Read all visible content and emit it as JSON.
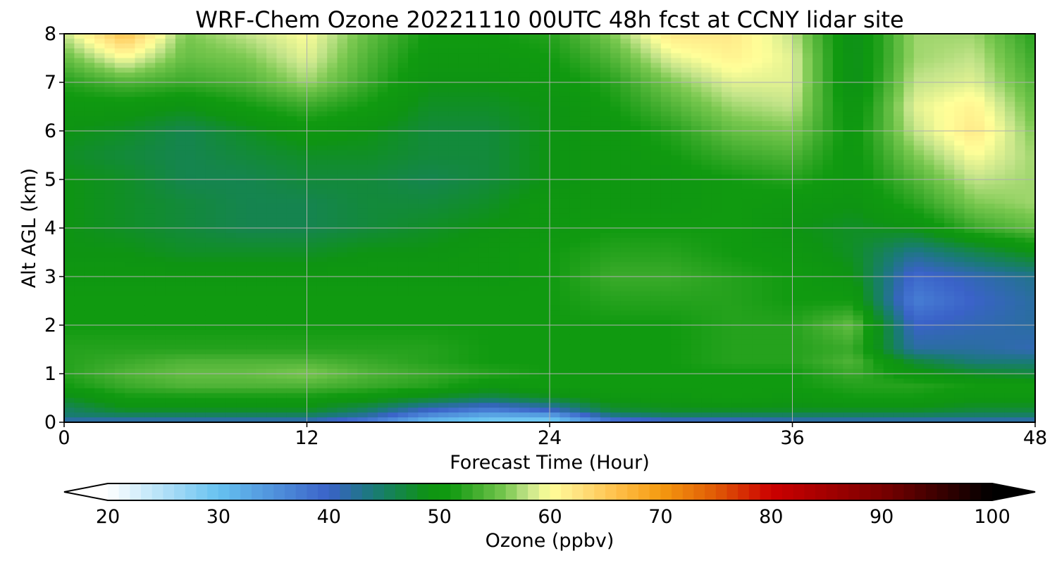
{
  "chart_data": {
    "type": "heatmap",
    "title": "WRF-Chem Ozone  20221110 00UTC 48h fcst at CCNY lidar site",
    "xlabel": "Forecast Time (Hour)",
    "ylabel": "Alt AGL (km)",
    "xlim": [
      0,
      48
    ],
    "ylim": [
      0,
      8
    ],
    "xticks": [
      0,
      12,
      24,
      36,
      48
    ],
    "yticks": [
      0,
      1,
      2,
      3,
      4,
      5,
      6,
      7,
      8
    ],
    "grid": true,
    "x": [
      0,
      3,
      6,
      9,
      12,
      15,
      18,
      21,
      24,
      27,
      30,
      33,
      36,
      39,
      42,
      45,
      48
    ],
    "y": [
      0,
      0.1,
      0.25,
      0.5,
      0.75,
      1,
      1.25,
      1.5,
      2,
      2.5,
      3,
      3.5,
      4,
      4.5,
      5,
      5.5,
      6,
      6.5,
      7,
      7.5,
      8
    ],
    "z": [
      [
        40,
        40,
        40,
        40,
        40,
        36,
        30,
        28,
        28,
        36,
        38,
        38,
        40,
        40,
        40,
        40,
        40
      ],
      [
        44,
        44,
        44,
        44,
        44,
        41,
        34,
        31,
        31,
        42,
        44,
        44,
        44,
        44,
        44,
        44,
        44
      ],
      [
        45,
        48,
        48,
        48,
        48,
        45,
        40,
        37,
        40,
        47,
        48,
        48,
        48,
        48,
        48,
        47,
        47
      ],
      [
        48,
        51,
        51,
        51,
        51,
        50,
        48,
        46,
        48,
        50,
        50,
        51,
        50,
        51,
        51,
        50,
        50
      ],
      [
        51,
        53,
        54,
        54,
        54,
        53,
        52,
        50,
        51,
        51,
        51,
        51,
        51,
        52,
        52,
        51,
        51
      ],
      [
        52,
        54,
        55,
        55,
        56,
        54,
        53,
        52,
        51,
        51,
        51,
        51,
        51,
        53,
        50,
        48,
        47
      ],
      [
        52,
        53,
        54,
        54,
        54,
        53,
        52,
        51,
        51,
        51,
        51,
        52,
        52,
        54,
        47,
        44,
        44
      ],
      [
        52,
        52,
        52,
        52,
        52,
        52,
        52,
        51,
        51,
        51,
        51,
        52,
        52,
        53,
        42,
        42,
        41
      ],
      [
        51,
        51,
        51,
        51,
        51,
        51,
        51,
        51,
        51,
        51,
        51,
        52,
        52,
        55,
        40,
        41,
        42
      ],
      [
        51,
        51,
        51,
        51,
        51,
        51,
        51,
        51,
        51,
        52,
        52,
        52,
        51,
        51,
        37,
        40,
        42
      ],
      [
        50,
        50,
        50,
        50,
        50,
        50,
        50,
        50,
        51,
        53,
        53,
        52,
        51,
        49,
        39,
        41,
        43
      ],
      [
        49,
        49,
        48,
        48,
        48,
        49,
        49,
        50,
        51,
        52,
        52,
        51,
        50,
        48,
        43,
        46,
        49
      ],
      [
        49,
        48,
        47,
        46,
        46,
        47,
        48,
        49,
        50,
        51,
        51,
        51,
        49,
        48,
        49,
        53,
        55
      ],
      [
        49,
        48,
        47,
        46,
        46,
        47,
        47,
        48,
        50,
        50,
        50,
        51,
        50,
        49,
        52,
        56,
        57
      ],
      [
        49,
        48,
        46,
        46,
        47,
        47,
        46,
        47,
        49,
        50,
        50,
        51,
        52,
        50,
        54,
        58,
        57
      ],
      [
        48,
        47,
        46,
        47,
        48,
        48,
        47,
        47,
        49,
        50,
        51,
        53,
        54,
        50,
        56,
        60,
        57
      ],
      [
        49,
        48,
        46,
        48,
        50,
        49,
        47,
        47,
        49,
        50,
        52,
        55,
        56,
        50,
        58,
        62,
        56
      ],
      [
        50,
        50,
        49,
        51,
        53,
        51,
        48,
        48,
        49,
        51,
        54,
        57,
        58,
        49,
        59,
        61,
        55
      ],
      [
        52,
        54,
        53,
        54,
        57,
        53,
        49,
        49,
        50,
        52,
        56,
        59,
        59,
        48,
        58,
        59,
        54
      ],
      [
        55,
        60,
        55,
        56,
        59,
        54,
        50,
        50,
        51,
        54,
        59,
        61,
        59,
        48,
        57,
        58,
        53
      ],
      [
        58,
        66,
        56,
        58,
        60,
        55,
        51,
        51,
        52,
        56,
        62,
        62,
        58,
        48,
        57,
        57,
        52
      ]
    ],
    "colorbar": {
      "label": "Ozone  (ppbv)",
      "min": 20,
      "max": 100,
      "ticks": [
        20,
        30,
        40,
        50,
        60,
        70,
        80,
        90,
        100
      ],
      "extend": "both",
      "stops": [
        {
          "v": 20,
          "c": "#ffffff"
        },
        {
          "v": 30,
          "c": "#66c2f0"
        },
        {
          "v": 40,
          "c": "#3a62c8"
        },
        {
          "v": 44,
          "c": "#1a7a78"
        },
        {
          "v": 49,
          "c": "#0e9412"
        },
        {
          "v": 51,
          "c": "#109a10"
        },
        {
          "v": 53,
          "c": "#3aaa2a"
        },
        {
          "v": 56,
          "c": "#7ac850"
        },
        {
          "v": 58,
          "c": "#c4e48a"
        },
        {
          "v": 60,
          "c": "#ffff99"
        },
        {
          "v": 62,
          "c": "#ffe888"
        },
        {
          "v": 66,
          "c": "#ffc04a"
        },
        {
          "v": 70,
          "c": "#f59a10"
        },
        {
          "v": 75,
          "c": "#e05a05"
        },
        {
          "v": 80,
          "c": "#cc0000"
        },
        {
          "v": 90,
          "c": "#7a0000"
        },
        {
          "v": 100,
          "c": "#000000"
        }
      ]
    }
  }
}
